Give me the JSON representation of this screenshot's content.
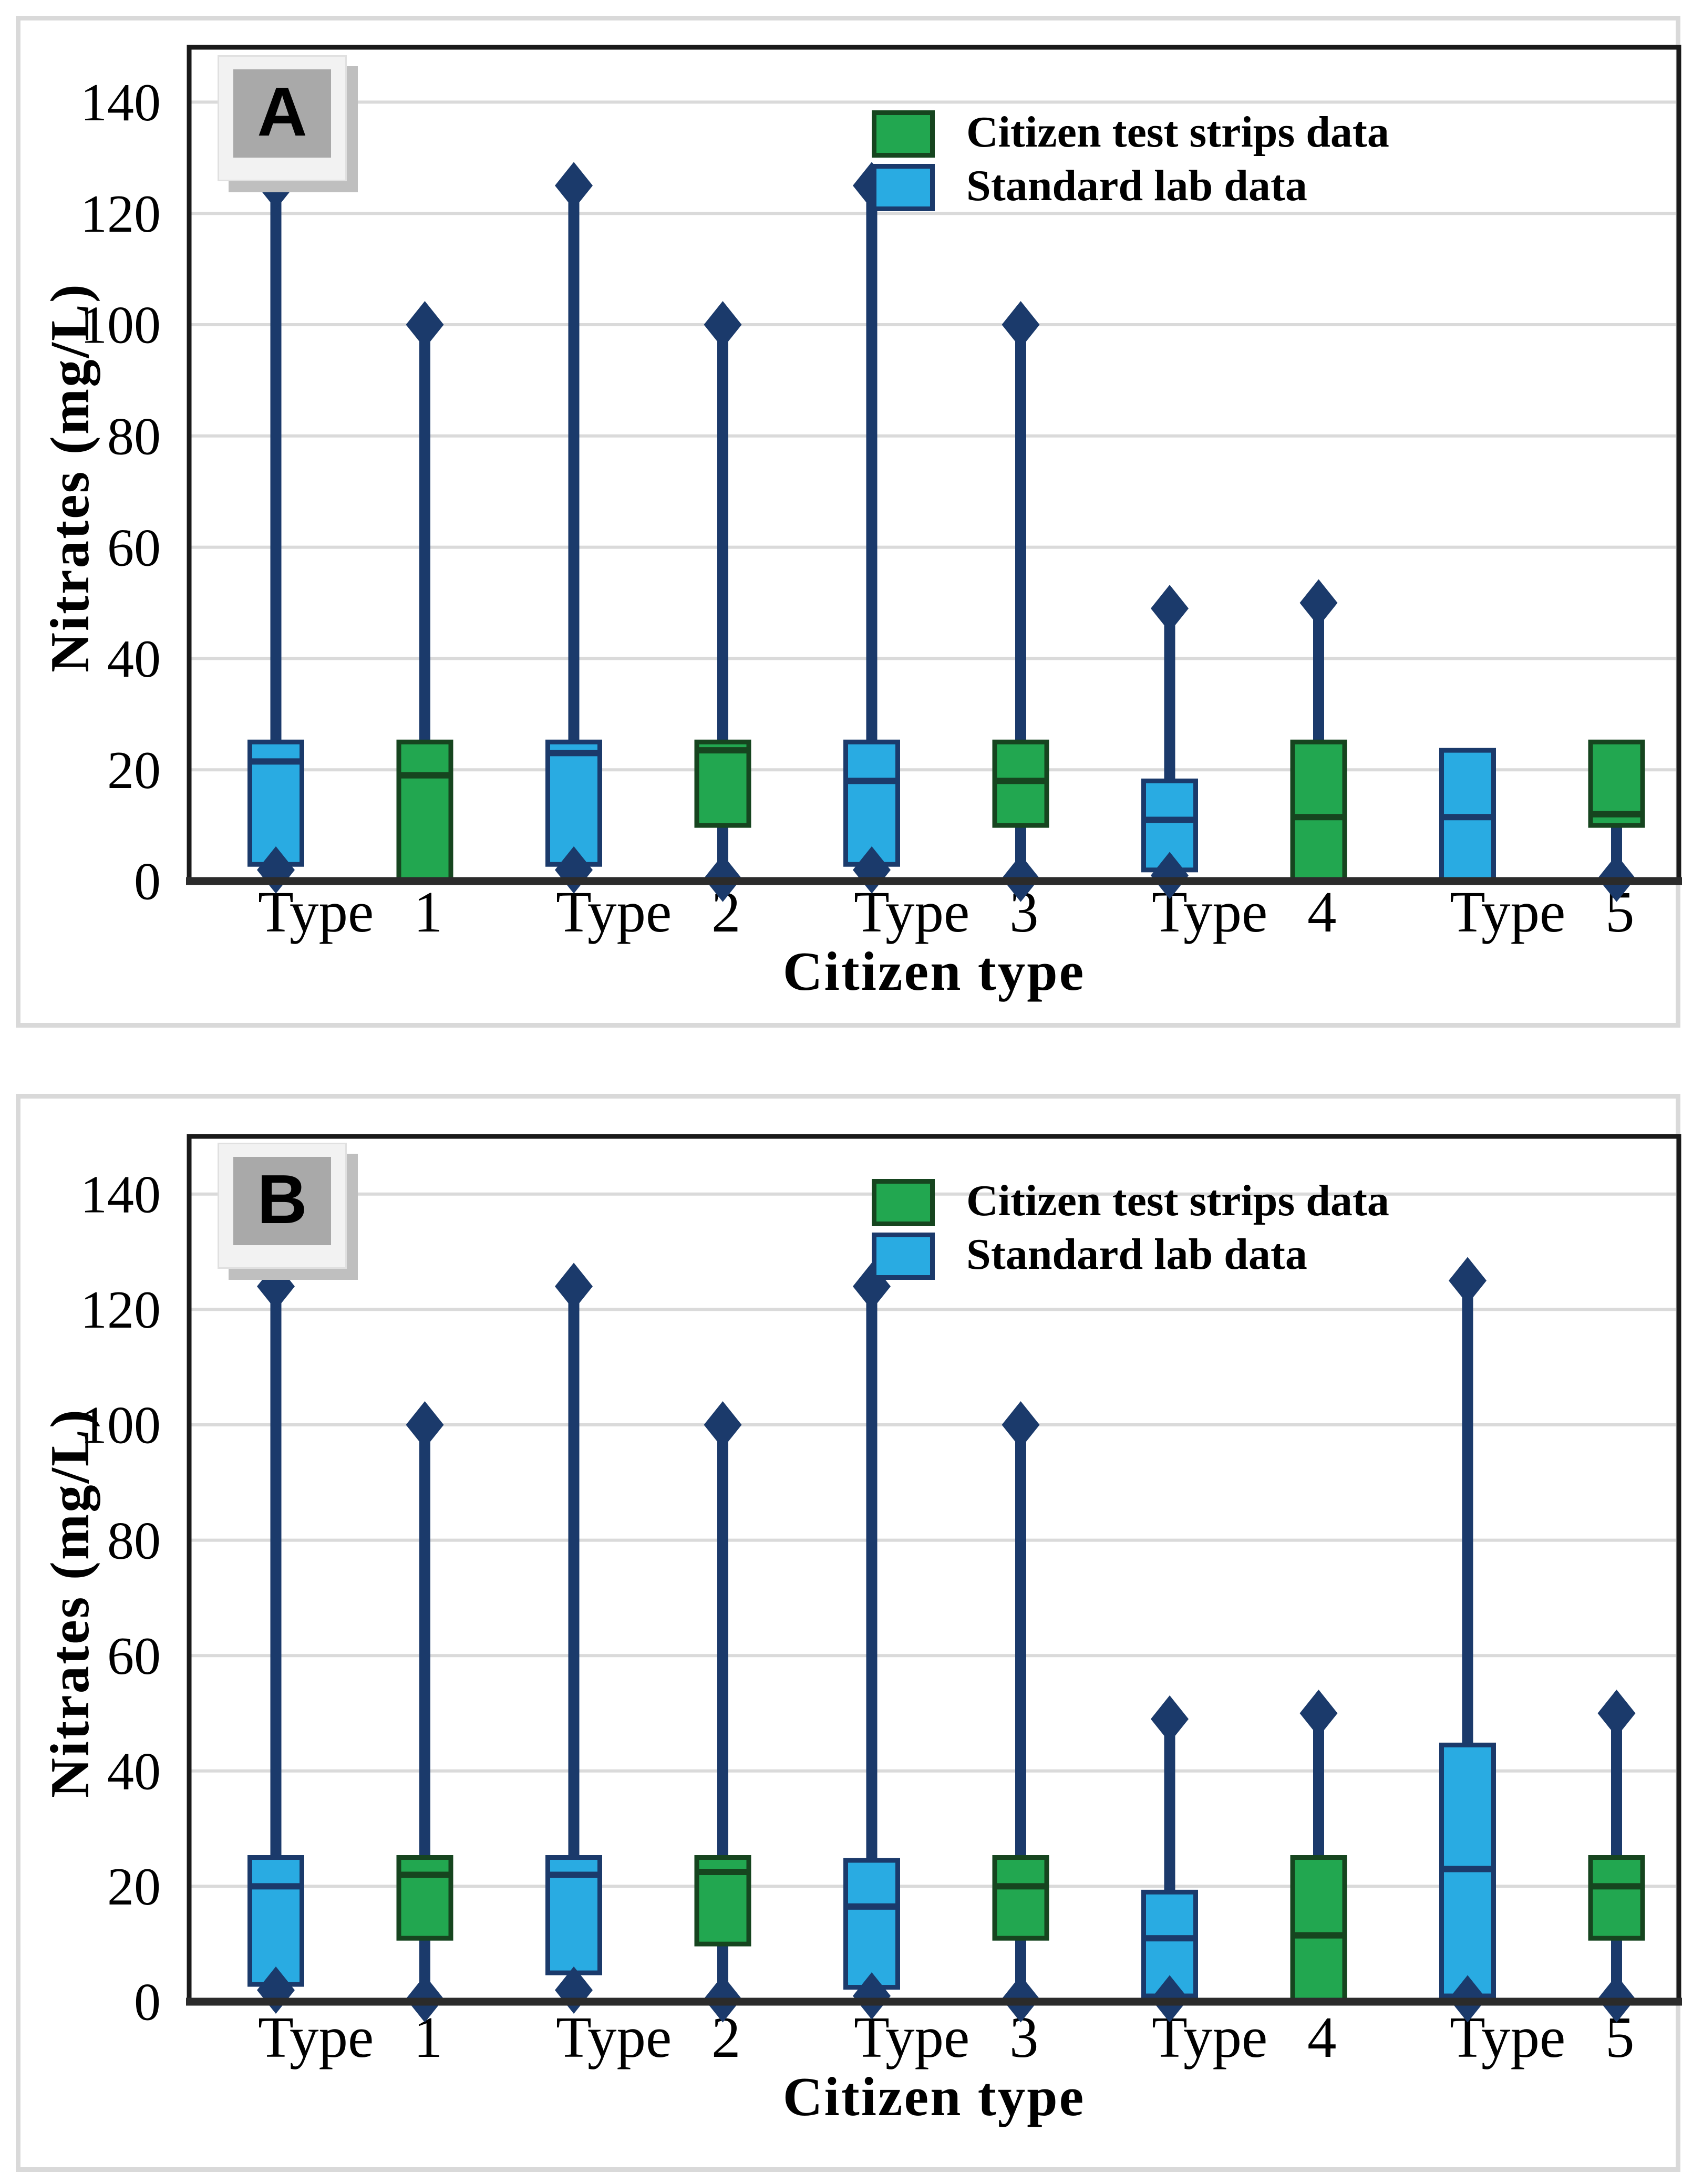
{
  "figure": {
    "y_axis_label": "Nitrates (mg/L)",
    "x_axis_label": "Citizen type",
    "legend": [
      {
        "label": "Citizen test strips data",
        "color_key": "green"
      },
      {
        "label": "Standard lab data",
        "color_key": "blue"
      }
    ],
    "colors": {
      "strips_green": "#22A750",
      "lab_blue": "#29ABE2",
      "navy": "#1B3A6B",
      "dark_green": "#16451F",
      "gridline": "#DADADA",
      "axis": "#2B2B2B",
      "plot_border": "#1A1A1A",
      "panel_border": "#D9D9D9",
      "label_box_gray": "#A9A9A9"
    }
  },
  "chart_data": [
    {
      "type": "boxplot",
      "panel": "A",
      "ylabel": "Nitrates (mg/L)",
      "xlabel": "Citizen type",
      "ylim": [
        0,
        150
      ],
      "yticks": [
        0,
        20,
        40,
        60,
        80,
        100,
        120,
        140
      ],
      "grid": "horizontal",
      "legend_position": "top-right",
      "categories": [
        "Type 1",
        "Type 2",
        "Type 3",
        "Type 4",
        "Type 5"
      ],
      "series": [
        {
          "name": "Citizen test strips data",
          "color_key": "green",
          "slot": 1,
          "boxes": [
            {
              "min": 0,
              "q1": 0,
              "med": 19,
              "q3": 25,
              "max": 100
            },
            {
              "min": 0.5,
              "q1": 10,
              "med": 23.5,
              "q3": 25,
              "max": 100
            },
            {
              "min": 0.5,
              "q1": 10,
              "med": 18,
              "q3": 25,
              "max": 100
            },
            {
              "min": 0,
              "q1": 0,
              "med": 11.5,
              "q3": 25,
              "max": 50
            },
            {
              "min": 0.5,
              "q1": 10,
              "med": 12,
              "q3": 25,
              "max": 25
            }
          ]
        },
        {
          "name": "Standard lab data",
          "color_key": "blue",
          "slot": 0,
          "boxes": [
            {
              "min": 2,
              "q1": 3,
              "med": 21.5,
              "q3": 25,
              "max": 125
            },
            {
              "min": 2,
              "q1": 3,
              "med": 23,
              "q3": 25,
              "max": 125
            },
            {
              "min": 2,
              "q1": 3,
              "med": 18,
              "q3": 25,
              "max": 125
            },
            {
              "min": 1,
              "q1": 2,
              "med": 11,
              "q3": 18,
              "max": 49
            },
            {
              "min": 0,
              "q1": 0,
              "med": 11.5,
              "q3": 23.5,
              "max": 23.5
            }
          ]
        }
      ]
    },
    {
      "type": "boxplot",
      "panel": "B",
      "ylabel": "Nitrates (mg/L)",
      "xlabel": "Citizen type",
      "ylim": [
        0,
        150
      ],
      "yticks": [
        0,
        20,
        40,
        60,
        80,
        100,
        120,
        140
      ],
      "grid": "horizontal",
      "legend_position": "top-right",
      "categories": [
        "Type 1",
        "Type 2",
        "Type 3",
        "Type 4",
        "Type 5"
      ],
      "series": [
        {
          "name": "Citizen test strips data",
          "color_key": "green",
          "slot": 1,
          "boxes": [
            {
              "min": 0.5,
              "q1": 11,
              "med": 22,
              "q3": 25,
              "max": 100
            },
            {
              "min": 0.5,
              "q1": 10,
              "med": 22.5,
              "q3": 25,
              "max": 100
            },
            {
              "min": 0.5,
              "q1": 11,
              "med": 20,
              "q3": 25,
              "max": 100
            },
            {
              "min": 0,
              "q1": 0,
              "med": 11.5,
              "q3": 25,
              "max": 50
            },
            {
              "min": 0.5,
              "q1": 11,
              "med": 20,
              "q3": 25,
              "max": 50
            }
          ]
        },
        {
          "name": "Standard lab data",
          "color_key": "blue",
          "slot": 0,
          "boxes": [
            {
              "min": 2,
              "q1": 3,
              "med": 20,
              "q3": 25,
              "max": 124
            },
            {
              "min": 2,
              "q1": 5,
              "med": 22,
              "q3": 25,
              "max": 124
            },
            {
              "min": 1,
              "q1": 2.5,
              "med": 16.5,
              "q3": 24.5,
              "max": 124
            },
            {
              "min": 0.5,
              "q1": 1,
              "med": 11,
              "q3": 19,
              "max": 49
            },
            {
              "min": 0.5,
              "q1": 1,
              "med": 23,
              "q3": 44.5,
              "max": 125
            }
          ]
        }
      ]
    }
  ]
}
